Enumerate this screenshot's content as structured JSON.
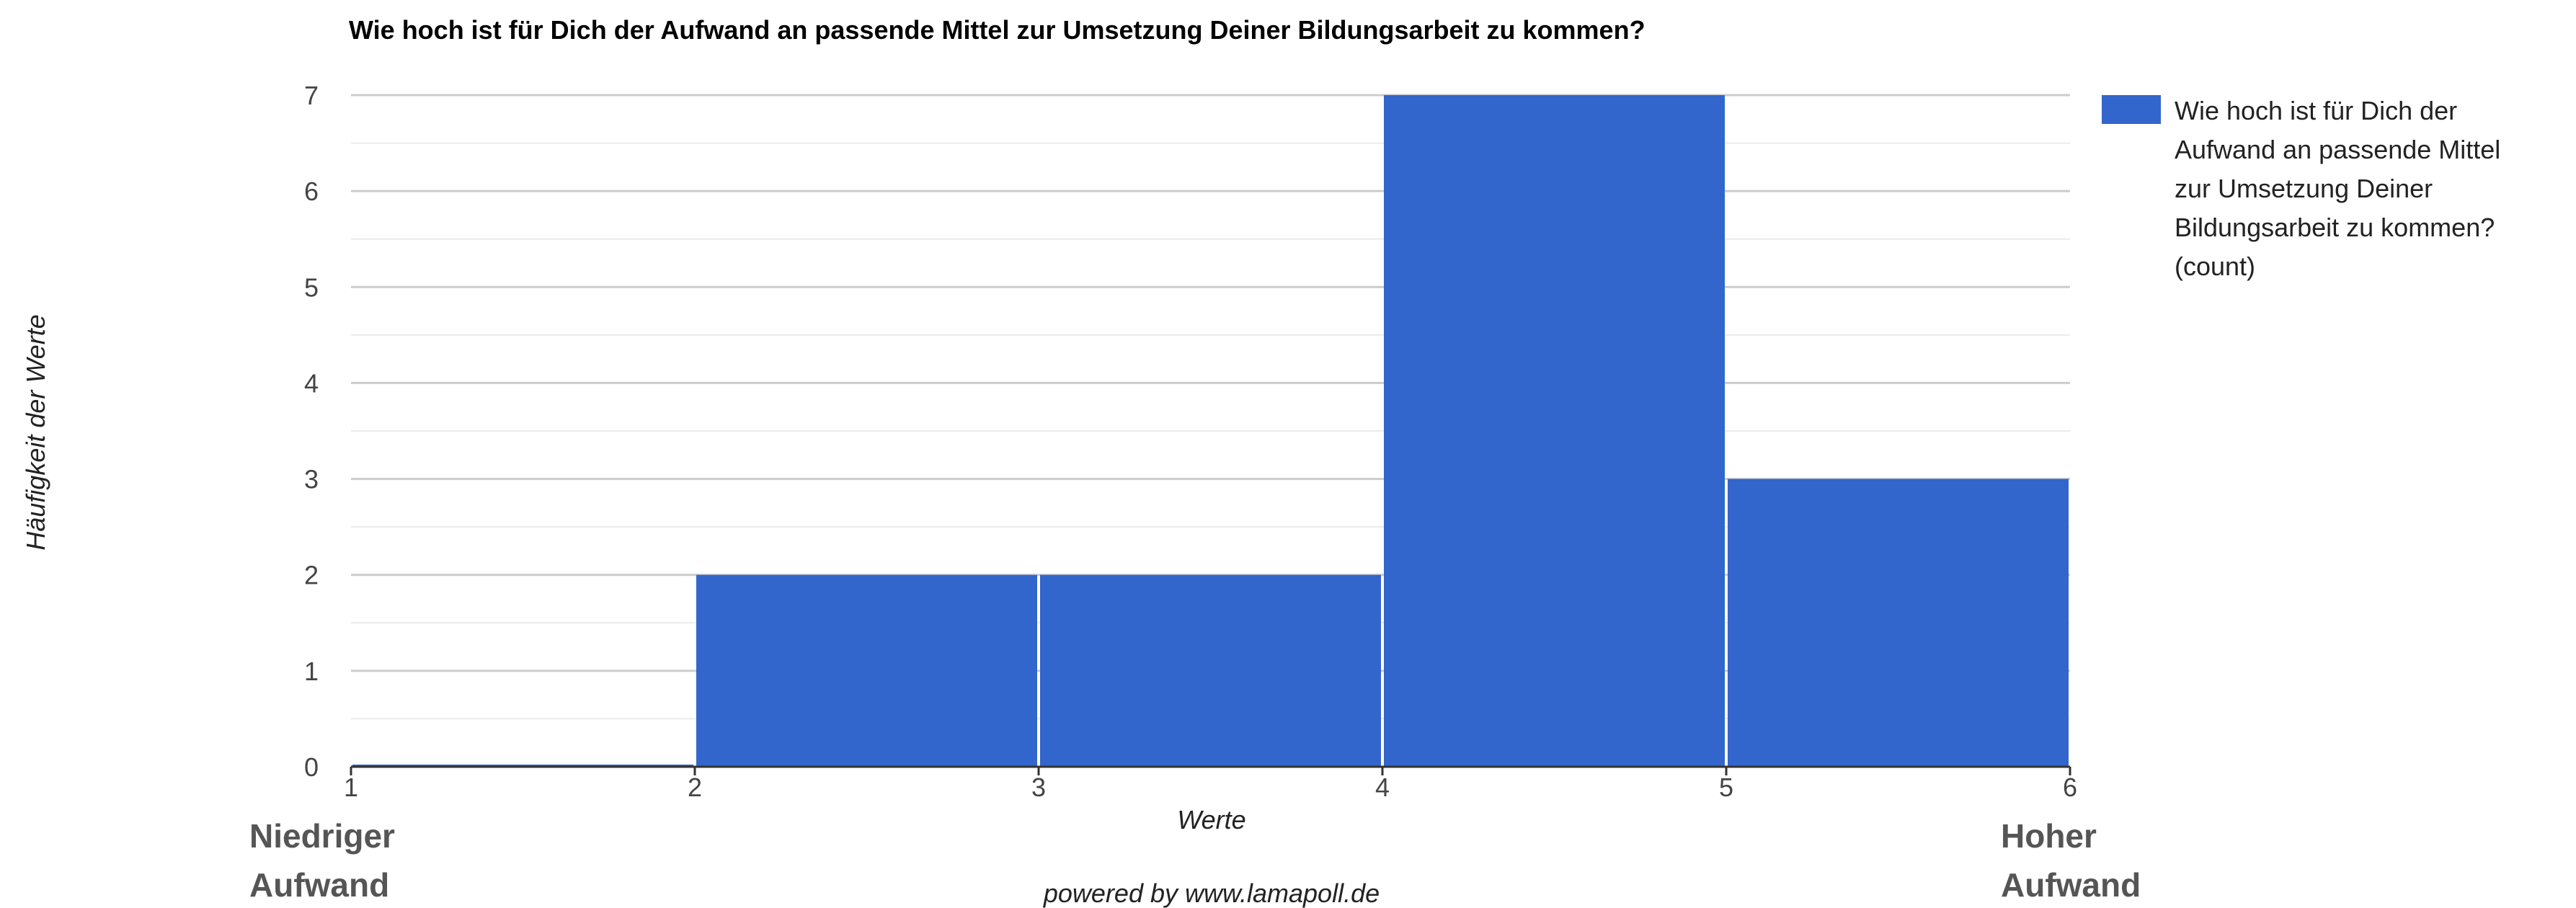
{
  "colors": {
    "bar": "#3366cc",
    "grid": "#cccccc",
    "minor_grid": "#ebebeb",
    "baseline": "#333333"
  },
  "chart_data": {
    "type": "bar",
    "title": "Wie hoch ist für Dich der Aufwand an passende Mittel zur Umsetzung Deiner Bildungsarbeit zu kommen?",
    "xlabel": "Werte",
    "ylabel": "Häufigkeit der Werte",
    "x_ticks": [
      "1",
      "2",
      "3",
      "4",
      "5",
      "6"
    ],
    "y_ticks": [
      "0",
      "1",
      "2",
      "3",
      "4",
      "5",
      "6",
      "7"
    ],
    "xlim": [
      1,
      6
    ],
    "ylim": [
      0,
      7
    ],
    "grid": true,
    "legend_position": "right",
    "series": [
      {
        "name": "Wie hoch ist für Dich der Aufwand an passende Mittel zur Umsetzung Deiner Bildungsarbeit zu kommen? (count)",
        "bins": [
          {
            "x0": 1,
            "x1": 2,
            "value": 0
          },
          {
            "x0": 2,
            "x1": 3,
            "value": 2
          },
          {
            "x0": 3,
            "x1": 4,
            "value": 2
          },
          {
            "x0": 4,
            "x1": 5,
            "value": 7
          },
          {
            "x0": 5,
            "x1": 6,
            "value": 3
          }
        ]
      }
    ],
    "legend_lines": [
      "Wie hoch ist für Dich der",
      "Aufwand an passende Mittel",
      "zur Umsetzung Deiner",
      "Bildungsarbeit zu kommen?",
      "(count)"
    ],
    "annotations": {
      "left_lines": [
        "Niedriger",
        "Aufwand"
      ],
      "right_lines": [
        "Hoher",
        "Aufwand"
      ],
      "credit": "powered by www.lamapoll.de"
    }
  }
}
